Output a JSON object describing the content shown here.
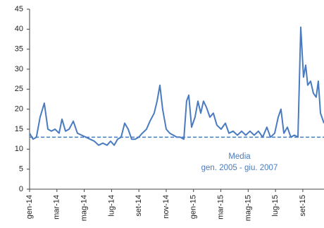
{
  "chart_data": {
    "type": "line",
    "x": [
      0,
      0.26,
      0.5,
      0.77,
      1.08,
      1.34,
      1.6,
      1.86,
      2.16,
      2.37,
      2.63,
      2.89,
      3.2,
      3.5,
      3.81,
      4.12,
      4.43,
      4.74,
      5.05,
      5.36,
      5.67,
      5.93,
      6.19,
      6.44,
      6.7,
      6.96,
      7.22,
      7.47,
      7.73,
      7.99,
      8.25,
      8.56,
      8.81,
      9.12,
      9.33,
      9.54,
      9.74,
      10,
      10.26,
      10.52,
      10.77,
      11.03,
      11.29,
      11.49,
      11.65,
      11.86,
      12.11,
      12.32,
      12.53,
      12.73,
      12.94,
      13.2,
      13.45,
      13.71,
      14.02,
      14.33,
      14.59,
      14.9,
      15.21,
      15.52,
      15.82,
      16.13,
      16.44,
      16.75,
      17.06,
      17.37,
      17.63,
      17.94,
      18.2,
      18.4,
      18.61,
      18.87,
      19.12,
      19.38,
      19.64,
      19.85,
      20.05,
      20.21,
      20.36,
      20.57,
      20.77,
      20.98,
      21.13,
      21.29,
      21.55
    ],
    "series": [
      {
        "color": "#4a7bbf",
        "values": [
          14,
          12.5,
          13,
          18,
          21.5,
          15,
          14.5,
          15,
          14,
          17.5,
          14.5,
          15,
          17,
          14,
          13.5,
          13,
          12.5,
          12,
          11,
          11.5,
          11,
          12,
          11,
          12.5,
          13,
          16.5,
          15,
          12.5,
          12.5,
          13,
          14,
          15,
          17,
          19,
          22,
          26,
          20,
          15,
          14,
          13.5,
          13,
          13,
          12.5,
          22,
          23.5,
          15.5,
          18,
          22,
          19,
          22,
          20.5,
          18,
          19,
          16,
          15,
          16.5,
          14,
          14.5,
          13.5,
          14.5,
          13.5,
          14.5,
          13.5,
          14.5,
          13,
          15.5,
          13,
          14,
          18,
          20,
          14,
          15.5,
          13,
          13.5,
          13,
          40.5,
          28,
          31,
          26,
          27,
          24,
          23,
          27,
          19,
          16.5
        ]
      }
    ],
    "reference": {
      "value": 13,
      "color": "#4a7bbf",
      "label": [
        "Media",
        "gen. 2005 - giu. 2007"
      ]
    },
    "xlim": [
      0,
      21.55
    ],
    "xticks": [
      {
        "value": 0,
        "label": "gen-14"
      },
      {
        "value": 2,
        "label": "mar-14"
      },
      {
        "value": 4,
        "label": "mag-14"
      },
      {
        "value": 6,
        "label": "lug-14"
      },
      {
        "value": 8,
        "label": "set-14"
      },
      {
        "value": 10,
        "label": "nov-14"
      },
      {
        "value": 12,
        "label": "gen-15"
      },
      {
        "value": 14,
        "label": "mar-15"
      },
      {
        "value": 16,
        "label": "mag-15"
      },
      {
        "value": 18,
        "label": "lug-15"
      },
      {
        "value": 20,
        "label": "set-15"
      }
    ],
    "ylim": [
      0,
      45
    ],
    "yticks": [
      0,
      5,
      10,
      15,
      20,
      25,
      30,
      35,
      40,
      45
    ]
  }
}
